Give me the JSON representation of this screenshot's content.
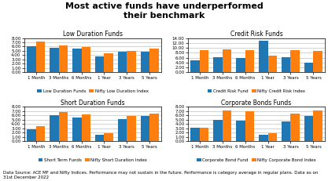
{
  "title": "Most active funds have underperformed\ntheir benchmark",
  "footer": "Data Source: ACE MF and Nifty Indices. Performance may not sustain in the future. Performance is category average in regular plans. Data as on 31st December 2022",
  "chart_data": [
    {
      "type": "bar",
      "title": "Low Duration Funds",
      "categories": [
        "1 Month",
        "3 Months",
        "6 Months",
        "1 Year",
        "3 Years",
        "5 Years"
      ],
      "series": [
        {
          "name": "Low Duration Funds",
          "values": [
            6.0,
            5.8,
            5.5,
            3.8,
            4.8,
            4.8
          ]
        },
        {
          "name": "Nifty Low Duration Index",
          "values": [
            7.1,
            6.3,
            5.9,
            4.5,
            5.0,
            5.5
          ]
        }
      ],
      "ylim": [
        0,
        8.0
      ],
      "yticks": [
        {
          "value": 0,
          "label": "0.00"
        },
        {
          "value": 1.0,
          "label": "1.00"
        },
        {
          "value": 2.0,
          "label": "2.00"
        },
        {
          "value": 3.0,
          "label": "3.00"
        },
        {
          "value": 4.0,
          "label": "4.00"
        },
        {
          "value": 5.0,
          "label": "5.00"
        },
        {
          "value": 6.0,
          "label": "6.00"
        },
        {
          "value": 7.0,
          "label": "7.00"
        },
        {
          "value": 8.0,
          "label": "8.00"
        }
      ],
      "grid": true,
      "legend": "lower center"
    },
    {
      "type": "bar",
      "title": "Credit Risk Funds",
      "categories": [
        "1 Month",
        "3 Months",
        "6 Months",
        "1 Year",
        "3 Years",
        "5 Years"
      ],
      "series": [
        {
          "name": "Credit Risk Fund",
          "values": [
            5.0,
            6.2,
            6.0,
            12.8,
            6.2,
            3.8
          ]
        },
        {
          "name": "Nifty Credit Risk Index",
          "values": [
            9.2,
            9.5,
            9.2,
            6.8,
            9.0,
            8.8
          ]
        }
      ],
      "ylim": [
        0,
        14.0
      ],
      "yticks": [
        {
          "value": 0,
          "label": "0.00"
        },
        {
          "value": 2.0,
          "label": "2.00"
        },
        {
          "value": 4.0,
          "label": "4.00"
        },
        {
          "value": 6.0,
          "label": "6.00"
        },
        {
          "value": 8.0,
          "label": "8.00"
        },
        {
          "value": 10.0,
          "label": "10.00"
        },
        {
          "value": 12.0,
          "label": "12.00"
        },
        {
          "value": 14.0,
          "label": "14.00"
        }
      ],
      "grid": true,
      "legend": "lower center"
    },
    {
      "type": "bar",
      "title": "Short Duration Funds",
      "categories": [
        "1 Month",
        "3 Months",
        "6 Months",
        "1 Year",
        "3 Years",
        "5 Years"
      ],
      "series": [
        {
          "name": "Short Term Funds",
          "values": [
            2.8,
            6.1,
            5.5,
            1.5,
            5.2,
            5.8
          ]
        },
        {
          "name": "Nifty Short Duration Index",
          "values": [
            3.5,
            6.8,
            6.2,
            1.8,
            5.8,
            6.5
          ]
        }
      ],
      "ylim": [
        0,
        8.0
      ],
      "yticks": [
        {
          "value": 0,
          "label": "0.00"
        },
        {
          "value": 1.0,
          "label": "1.00"
        },
        {
          "value": 2.0,
          "label": "2.00"
        },
        {
          "value": 3.0,
          "label": "3.00"
        },
        {
          "value": 4.0,
          "label": "4.00"
        },
        {
          "value": 5.0,
          "label": "5.00"
        },
        {
          "value": 6.0,
          "label": "6.00"
        },
        {
          "value": 7.0,
          "label": "7.00"
        },
        {
          "value": 8.0,
          "label": "8.00"
        }
      ],
      "grid": true,
      "legend": "lower center"
    },
    {
      "type": "bar",
      "title": "Corporate Bonds Funds",
      "categories": [
        "1 Month",
        "3 Months",
        "6 Months",
        "1 Year",
        "3 Years",
        "5 Years"
      ],
      "series": [
        {
          "name": "Corporate Bond Fund",
          "values": [
            3.2,
            5.0,
            4.8,
            1.5,
            4.5,
            5.8
          ]
        },
        {
          "name": "Nifty Corporate Bond Index",
          "values": [
            3.2,
            7.2,
            7.0,
            1.8,
            6.5,
            7.2
          ]
        }
      ],
      "ylim": [
        0,
        8.0
      ],
      "yticks": [
        {
          "value": 0,
          "label": "0.00"
        },
        {
          "value": 1.0,
          "label": "1.00"
        },
        {
          "value": 2.0,
          "label": "2.00"
        },
        {
          "value": 3.0,
          "label": "3.00"
        },
        {
          "value": 4.0,
          "label": "4.00"
        },
        {
          "value": 5.0,
          "label": "5.00"
        },
        {
          "value": 6.0,
          "label": "6.00"
        },
        {
          "value": 7.0,
          "label": "7.00"
        },
        {
          "value": 8.0,
          "label": "8.00"
        }
      ],
      "grid": true,
      "legend": "lower center"
    }
  ]
}
